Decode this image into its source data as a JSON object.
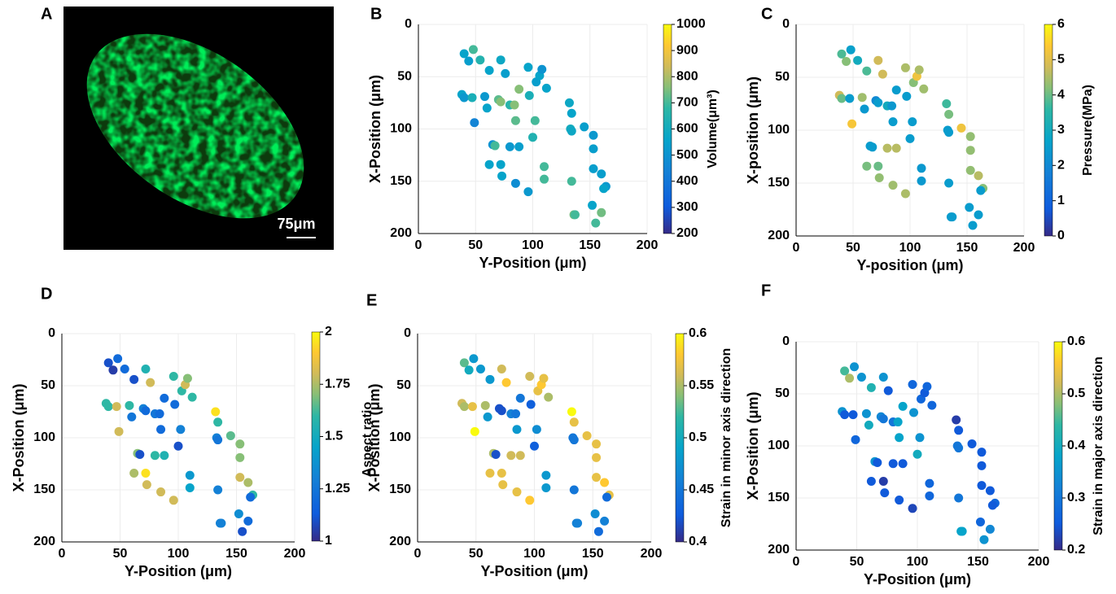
{
  "image_panel": {
    "label": "A",
    "scale_bar": "75μm"
  },
  "chart_data": [
    {
      "type": "scatter",
      "panel": "B",
      "xlabel": "Y-Position (μm)",
      "ylabel": "X-Position (μm)",
      "colorbar_label": "Volume(μm³)",
      "x": [
        40,
        44,
        48,
        54,
        38,
        40,
        47,
        58,
        60,
        49,
        62,
        72,
        76,
        70,
        72,
        80,
        84,
        88,
        85,
        96,
        103,
        106,
        108,
        112,
        97,
        102,
        100,
        65,
        67,
        62,
        72,
        73,
        80,
        88,
        85,
        96,
        110,
        110,
        132,
        134,
        133,
        134,
        134,
        145,
        153,
        153,
        153,
        160,
        164,
        162,
        152,
        155,
        160,
        136,
        137
      ],
      "y": [
        28,
        35,
        24,
        34,
        67,
        70,
        70,
        69,
        80,
        94,
        44,
        34,
        47,
        72,
        74,
        77,
        77,
        62,
        92,
        41,
        55,
        49,
        43,
        61,
        68,
        92,
        108,
        115,
        116,
        134,
        134,
        145,
        117,
        117,
        152,
        160,
        136,
        148,
        75,
        85,
        100,
        102,
        150,
        98,
        106,
        119,
        138,
        143,
        155,
        157,
        173,
        190,
        180,
        182,
        182
      ],
      "values": [
        560,
        540,
        700,
        650,
        560,
        520,
        620,
        520,
        560,
        450,
        560,
        580,
        540,
        720,
        760,
        660,
        760,
        760,
        720,
        560,
        540,
        560,
        500,
        560,
        620,
        700,
        640,
        500,
        700,
        560,
        560,
        560,
        520,
        540,
        480,
        520,
        700,
        700,
        580,
        560,
        600,
        580,
        700,
        540,
        520,
        540,
        540,
        540,
        520,
        560,
        560,
        700,
        740,
        740,
        700
      ],
      "xlim": [
        0,
        200
      ],
      "ylim": [
        0,
        200
      ],
      "xticks": [
        0,
        50,
        100,
        150,
        200
      ],
      "yticks": [
        0,
        50,
        100,
        150,
        200
      ],
      "yreverse": true,
      "grid": true,
      "clim": [
        200,
        1000
      ],
      "cticks": [
        200,
        300,
        400,
        500,
        600,
        700,
        800,
        900,
        1000
      ],
      "colormap": "parula"
    },
    {
      "type": "scatter",
      "panel": "C",
      "xlabel": "Y-position (μm)",
      "ylabel": "X-position (μm)",
      "colorbar_label": "Pressure(MPa)",
      "x": [
        40,
        44,
        48,
        54,
        38,
        40,
        47,
        58,
        60,
        49,
        62,
        72,
        76,
        70,
        72,
        80,
        84,
        88,
        85,
        96,
        103,
        106,
        108,
        112,
        97,
        102,
        100,
        65,
        67,
        62,
        72,
        73,
        80,
        88,
        85,
        96,
        110,
        110,
        132,
        134,
        133,
        134,
        134,
        145,
        153,
        153,
        153,
        160,
        164,
        162,
        152,
        155,
        160,
        136,
        137
      ],
      "y": [
        28,
        35,
        24,
        34,
        67,
        70,
        70,
        69,
        80,
        94,
        44,
        34,
        47,
        72,
        74,
        77,
        77,
        62,
        92,
        41,
        55,
        49,
        43,
        61,
        68,
        92,
        108,
        115,
        116,
        134,
        134,
        145,
        117,
        117,
        152,
        160,
        136,
        148,
        75,
        85,
        100,
        102,
        150,
        98,
        106,
        119,
        138,
        143,
        155,
        157,
        173,
        190,
        180,
        182,
        182
      ],
      "values": [
        3.8,
        4.2,
        2.6,
        3,
        4.8,
        4,
        2.5,
        4.4,
        2.4,
        5.3,
        3.8,
        4.8,
        4.8,
        2,
        2.5,
        3,
        2.4,
        2.5,
        2.5,
        4.5,
        4.2,
        5.2,
        4.5,
        4.4,
        2.5,
        2.5,
        2.5,
        2.5,
        2.5,
        4.1,
        4,
        4.3,
        4.6,
        4.6,
        4.4,
        4.5,
        2.4,
        2.4,
        3.7,
        4.1,
        2.5,
        2.5,
        2.5,
        5.2,
        4.3,
        4.3,
        4.3,
        4.6,
        4.2,
        2.5,
        2.5,
        2.5,
        2.5,
        2.5,
        2.5
      ],
      "xlim": [
        0,
        200
      ],
      "ylim": [
        0,
        200
      ],
      "xticks": [
        0,
        50,
        100,
        150,
        200
      ],
      "yticks": [
        0,
        50,
        100,
        150,
        200
      ],
      "yreverse": true,
      "grid": true,
      "clim": [
        0,
        6
      ],
      "cticks": [
        0,
        1,
        2,
        3,
        4,
        5,
        6
      ],
      "colormap": "parula"
    },
    {
      "type": "scatter",
      "panel": "D",
      "xlabel": "Y-Position (μm)",
      "ylabel": "X-Position (μm)",
      "colorbar_label": "Aspect ratio",
      "x": [
        40,
        44,
        48,
        54,
        38,
        40,
        47,
        58,
        60,
        49,
        62,
        72,
        76,
        70,
        72,
        80,
        84,
        88,
        85,
        96,
        103,
        106,
        108,
        112,
        97,
        102,
        100,
        65,
        67,
        62,
        72,
        73,
        80,
        88,
        85,
        96,
        110,
        110,
        132,
        134,
        133,
        134,
        134,
        145,
        153,
        153,
        153,
        160,
        164,
        162,
        152,
        155,
        160,
        136,
        137
      ],
      "y": [
        28,
        35,
        24,
        34,
        67,
        70,
        70,
        69,
        80,
        94,
        44,
        34,
        47,
        72,
        74,
        77,
        77,
        62,
        92,
        41,
        55,
        49,
        43,
        61,
        68,
        92,
        108,
        115,
        116,
        134,
        134,
        145,
        117,
        117,
        152,
        160,
        136,
        148,
        75,
        85,
        100,
        102,
        150,
        98,
        106,
        119,
        138,
        143,
        155,
        157,
        173,
        190,
        180,
        182,
        182
      ],
      "values": [
        1.1,
        1.05,
        1.2,
        1.2,
        1.6,
        1.6,
        1.8,
        1.6,
        1.25,
        1.8,
        1.1,
        1.55,
        1.8,
        1.3,
        1.2,
        1.25,
        1.2,
        1.2,
        1.2,
        1.6,
        1.6,
        1.8,
        1.7,
        1.6,
        1.2,
        1.3,
        1.1,
        1.7,
        1.1,
        1.75,
        1.95,
        1.8,
        1.6,
        1.55,
        1.8,
        1.8,
        1.4,
        1.45,
        1.95,
        1.6,
        1.3,
        1.25,
        1.3,
        1.65,
        1.7,
        1.7,
        1.8,
        1.75,
        1.6,
        1.2,
        1.35,
        1.1,
        1.2,
        1.3,
        1.3
      ],
      "xlim": [
        0,
        200
      ],
      "ylim": [
        0,
        200
      ],
      "xticks": [
        0,
        50,
        100,
        150,
        200
      ],
      "yticks": [
        0,
        50,
        100,
        150,
        200
      ],
      "yreverse": true,
      "grid": true,
      "clim": [
        1,
        2
      ],
      "cticks": [
        1,
        1.25,
        1.5,
        1.75,
        2
      ],
      "colormap": "parula"
    },
    {
      "type": "scatter",
      "panel": "E",
      "xlabel": "Y-Position (μm)",
      "ylabel": "X-Position (μm)",
      "colorbar_label": "Strain in minor axis direction",
      "x": [
        40,
        44,
        48,
        54,
        38,
        40,
        47,
        58,
        60,
        49,
        62,
        72,
        76,
        70,
        72,
        80,
        84,
        88,
        85,
        96,
        103,
        106,
        108,
        112,
        97,
        102,
        100,
        65,
        67,
        62,
        72,
        73,
        80,
        88,
        85,
        96,
        110,
        110,
        132,
        134,
        133,
        134,
        134,
        145,
        153,
        153,
        153,
        160,
        164,
        162,
        152,
        155,
        160,
        136,
        137
      ],
      "y": [
        28,
        35,
        24,
        34,
        67,
        70,
        70,
        69,
        80,
        94,
        44,
        34,
        47,
        72,
        74,
        77,
        77,
        62,
        92,
        41,
        55,
        49,
        43,
        61,
        68,
        92,
        108,
        115,
        116,
        134,
        134,
        145,
        117,
        117,
        152,
        160,
        136,
        148,
        75,
        85,
        100,
        102,
        150,
        98,
        106,
        119,
        138,
        143,
        155,
        157,
        173,
        190,
        180,
        182,
        182
      ],
      "values": [
        0.53,
        0.5,
        0.48,
        0.48,
        0.56,
        0.55,
        0.57,
        0.55,
        0.48,
        0.6,
        0.48,
        0.56,
        0.58,
        0.42,
        0.42,
        0.46,
        0.45,
        0.45,
        0.48,
        0.56,
        0.57,
        0.58,
        0.57,
        0.55,
        0.43,
        0.47,
        0.43,
        0.55,
        0.42,
        0.57,
        0.57,
        0.57,
        0.56,
        0.56,
        0.57,
        0.58,
        0.48,
        0.48,
        0.6,
        0.57,
        0.45,
        0.45,
        0.45,
        0.57,
        0.57,
        0.57,
        0.57,
        0.58,
        0.57,
        0.44,
        0.47,
        0.44,
        0.46,
        0.46,
        0.46
      ],
      "xlim": [
        0,
        200
      ],
      "ylim": [
        0,
        200
      ],
      "xticks": [
        0,
        50,
        100,
        150,
        200
      ],
      "yticks": [
        0,
        50,
        100,
        150,
        200
      ],
      "yreverse": true,
      "grid": true,
      "clim": [
        0.4,
        0.6
      ],
      "cticks": [
        0.4,
        0.45,
        0.5,
        0.55,
        0.6
      ],
      "colormap": "parula"
    },
    {
      "type": "scatter",
      "panel": "F",
      "xlabel": "Y-Position (μm)",
      "ylabel": "X-Position (μm)",
      "colorbar_label": "Strain in major axis direction",
      "x": [
        40,
        44,
        48,
        54,
        38,
        40,
        47,
        58,
        60,
        49,
        62,
        72,
        76,
        70,
        72,
        80,
        84,
        88,
        85,
        96,
        103,
        106,
        108,
        112,
        97,
        102,
        100,
        65,
        67,
        62,
        72,
        73,
        80,
        88,
        85,
        96,
        110,
        110,
        132,
        134,
        133,
        134,
        134,
        145,
        153,
        153,
        153,
        160,
        164,
        162,
        152,
        155,
        160,
        136,
        137
      ],
      "y": [
        28,
        35,
        24,
        34,
        67,
        70,
        70,
        69,
        80,
        94,
        44,
        34,
        47,
        72,
        74,
        77,
        77,
        62,
        92,
        41,
        55,
        49,
        43,
        61,
        68,
        92,
        108,
        115,
        116,
        134,
        134,
        145,
        117,
        117,
        152,
        160,
        136,
        148,
        75,
        85,
        100,
        102,
        150,
        98,
        106,
        119,
        138,
        143,
        155,
        157,
        173,
        190,
        180,
        182,
        182
      ],
      "values": [
        0.45,
        0.5,
        0.35,
        0.35,
        0.35,
        0.25,
        0.25,
        0.35,
        0.4,
        0.27,
        0.42,
        0.35,
        0.25,
        0.33,
        0.3,
        0.3,
        0.38,
        0.38,
        0.38,
        0.27,
        0.27,
        0.25,
        0.27,
        0.27,
        0.35,
        0.35,
        0.4,
        0.35,
        0.25,
        0.25,
        0.22,
        0.25,
        0.25,
        0.25,
        0.25,
        0.23,
        0.27,
        0.27,
        0.22,
        0.25,
        0.3,
        0.3,
        0.3,
        0.25,
        0.25,
        0.25,
        0.25,
        0.25,
        0.27,
        0.25,
        0.27,
        0.35,
        0.33,
        0.38,
        0.38
      ],
      "xlim": [
        0,
        200
      ],
      "ylim": [
        0,
        200
      ],
      "xticks": [
        0,
        50,
        100,
        150,
        200
      ],
      "yticks": [
        0,
        50,
        100,
        150,
        200
      ],
      "yreverse": true,
      "grid": true,
      "clim": [
        0.2,
        0.6
      ],
      "cticks": [
        0.2,
        0.3,
        0.4,
        0.5,
        0.6
      ],
      "colormap": "parula"
    }
  ]
}
